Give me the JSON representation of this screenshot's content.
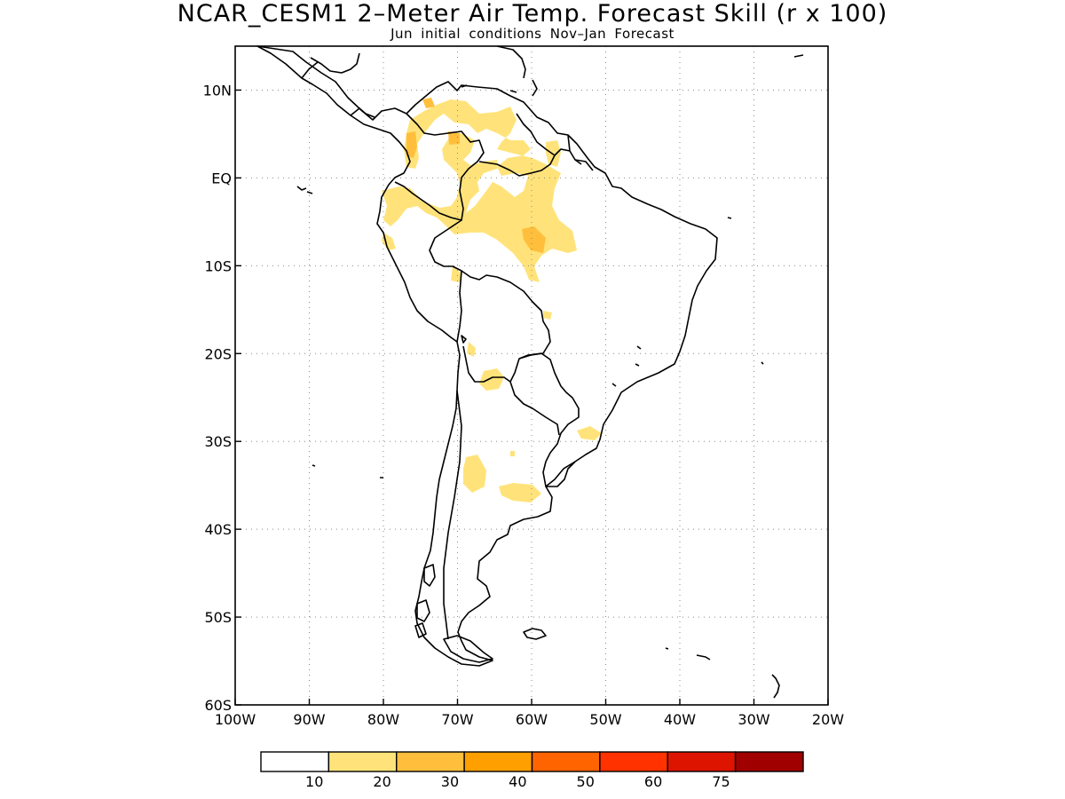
{
  "header": {
    "title": "NCAR_CESM1 2–Meter Air Temp. Forecast Skill (r x 100)",
    "subtitle": "Jun initial conditions  Nov–Jan Forecast"
  },
  "map": {
    "region": "South America",
    "lon_range": [
      -100,
      -20
    ],
    "lat_range": [
      -60,
      15
    ],
    "lat_ticks": [
      {
        "value": 10,
        "label": "10N"
      },
      {
        "value": 0,
        "label": "EQ"
      },
      {
        "value": -10,
        "label": "10S"
      },
      {
        "value": -20,
        "label": "20S"
      },
      {
        "value": -30,
        "label": "30S"
      },
      {
        "value": -40,
        "label": "40S"
      },
      {
        "value": -50,
        "label": "50S"
      },
      {
        "value": -60,
        "label": "60S"
      }
    ],
    "lon_ticks": [
      {
        "value": -100,
        "label": "100W"
      },
      {
        "value": -90,
        "label": "90W"
      },
      {
        "value": -80,
        "label": "80W"
      },
      {
        "value": -70,
        "label": "70W"
      },
      {
        "value": -60,
        "label": "60W"
      },
      {
        "value": -50,
        "label": "50W"
      },
      {
        "value": -40,
        "label": "40W"
      },
      {
        "value": -30,
        "label": "30W"
      },
      {
        "value": -20,
        "label": "20W"
      }
    ],
    "grid": true,
    "grid_style": "dotted"
  },
  "colorbar": {
    "bins": [
      {
        "color": "#ffffff"
      },
      {
        "color": "#ffe37a"
      },
      {
        "color": "#ffbf3c"
      },
      {
        "color": "#ff9f00"
      },
      {
        "color": "#ff6400"
      },
      {
        "color": "#ff3200"
      },
      {
        "color": "#dc1400"
      },
      {
        "color": "#a00000"
      }
    ],
    "labels": [
      "10",
      "20",
      "30",
      "40",
      "50",
      "60",
      "75"
    ]
  },
  "colors": {
    "skill_10_20": "#ffe37a",
    "skill_20_30": "#ffbf3c",
    "coastline": "#000000",
    "background": "#ffffff"
  }
}
